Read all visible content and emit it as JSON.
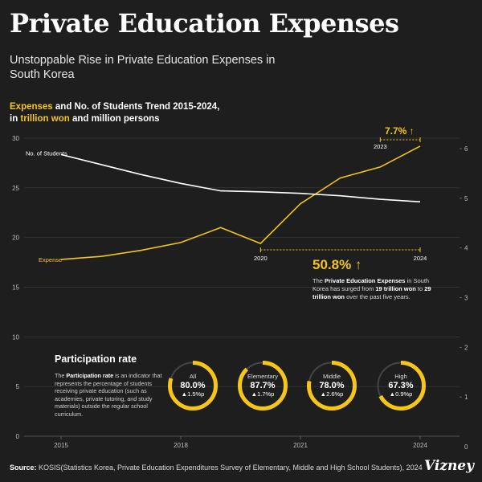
{
  "title": "Private Education Expenses",
  "subtitle": "Unstoppable Rise in Private Education Expenses in South Korea",
  "chart_heading": {
    "part1": "Expenses",
    "part2": " and No. of Students Trend 2015-2024,",
    "part3": "in ",
    "part4": "trillion won",
    "part5": " and million persons"
  },
  "colors": {
    "background": "#1e1e1e",
    "expense": "#f5c518",
    "students": "#ffffff",
    "grid": "#3a3a3a",
    "axis_text": "#bbbbbb"
  },
  "chart_data": {
    "type": "line",
    "x": [
      2015,
      2016,
      2017,
      2018,
      2019,
      2020,
      2021,
      2022,
      2023,
      2024
    ],
    "x_ticks": [
      "2015",
      "2018",
      "2021",
      "2024"
    ],
    "xlim": [
      2015,
      2024
    ],
    "ylim_left": [
      0,
      30
    ],
    "yticks_left": [
      "0",
      "5",
      "10",
      "15",
      "20",
      "25",
      "30"
    ],
    "ylim_right": [
      0,
      6
    ],
    "yticks_right": [
      "0",
      "1",
      "2",
      "3",
      "4",
      "5",
      "6"
    ],
    "grid": true,
    "series": [
      {
        "name": "Expense",
        "axis": "left",
        "color": "#f5c518",
        "values": [
          17.8,
          18.1,
          18.7,
          19.5,
          21.0,
          19.4,
          23.4,
          26.0,
          27.1,
          29.2
        ]
      },
      {
        "name": "No. of Students",
        "axis": "right",
        "color": "#ffffff",
        "values": [
          5.88,
          5.68,
          5.48,
          5.3,
          5.15,
          5.13,
          5.1,
          5.05,
          4.98,
          4.93
        ]
      }
    ],
    "annotations": {
      "growth_5yr": {
        "value": "50.8%",
        "arrow": "↑",
        "from_label": "2020",
        "to_label": "2024",
        "from_x": 2020,
        "to_x": 2024
      },
      "growth_1yr": {
        "value": "7.7%",
        "arrow": "↑",
        "from_label": "2023",
        "to_label": "",
        "from_x": 2023,
        "to_x": 2024
      }
    }
  },
  "annotation_text": {
    "p1": "The ",
    "b1": "Private Education Expenses",
    "p2": " in South Korea has surged from ",
    "b2": "19 trillion won",
    "p3": " to ",
    "b3": "29 trillion won",
    "p4": " over the past five years."
  },
  "participation": {
    "title": "Participation rate",
    "desc_p1": "The ",
    "desc_b1": "Participation rate",
    "desc_p2": " is an indicator that represents the percentage of students receiving private education (such as academies, private tutoring, and study materials) outside the regular school curriculum.",
    "rings": [
      {
        "label": "All",
        "value": "80.0%",
        "change": "▲1.5%p",
        "rate": 80.0
      },
      {
        "label": "Elementary",
        "value": "87.7%",
        "change": "▲1.7%p",
        "rate": 87.7
      },
      {
        "label": "Middle",
        "value": "78.0%",
        "change": "▲2.6%p",
        "rate": 78.0
      },
      {
        "label": "High",
        "value": "67.3%",
        "change": "▲0.9%p",
        "rate": 67.3
      }
    ]
  },
  "source": {
    "label": "Source:",
    "text": " KOSIS(Statistics Korea, Private Education Expenditures Survey of Elementary, Middle and High School Students), 2024"
  },
  "logo": "Vizney"
}
